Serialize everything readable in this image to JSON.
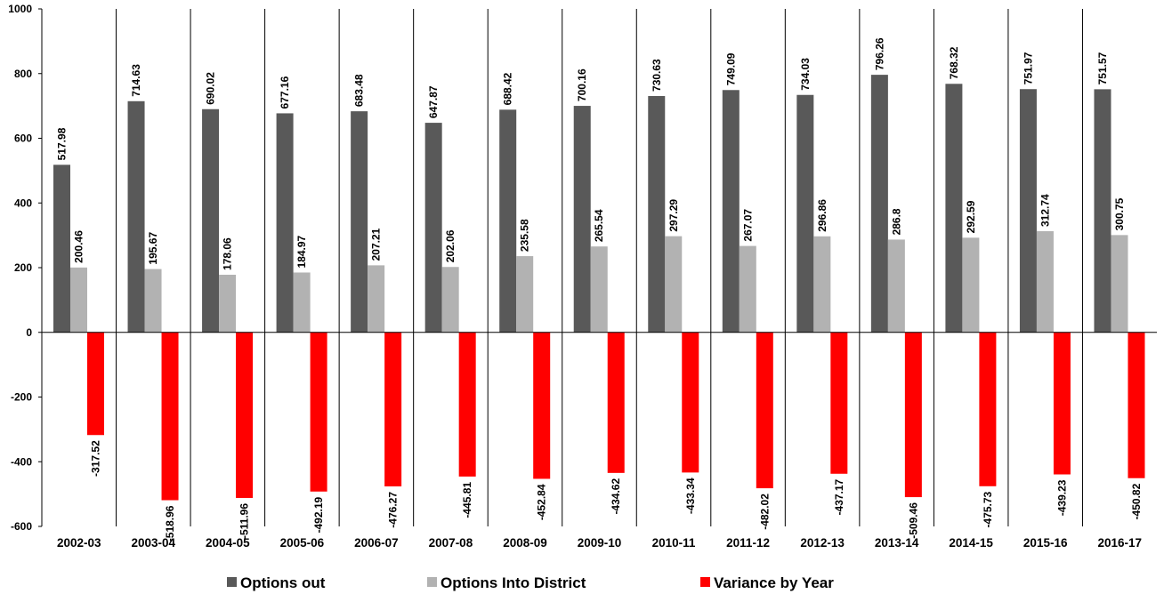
{
  "chart_data": {
    "type": "bar",
    "categories": [
      "2002-03",
      "2003-04",
      "2004-05",
      "2005-06",
      "2006-07",
      "2007-08",
      "2008-09",
      "2009-10",
      "2010-11",
      "2011-12",
      "2012-13",
      "2013-14",
      "2014-15",
      "2015-16",
      "2016-17"
    ],
    "series": [
      {
        "name": "Options out",
        "color": "#595959",
        "values": [
          517.98,
          714.63,
          690.02,
          677.16,
          683.48,
          647.87,
          688.42,
          700.16,
          730.63,
          749.09,
          734.03,
          796.26,
          768.32,
          751.97,
          751.57
        ],
        "labels": [
          "517.98",
          "714.63",
          "690.02",
          "677.16",
          "683.48",
          "647.87",
          "688.42",
          "700.16",
          "730.63",
          "749.09",
          "734.03",
          "796.26",
          "768.32",
          "751.97",
          "751.57"
        ]
      },
      {
        "name": "Options Into District",
        "color": "#b2b2b2",
        "values": [
          200.46,
          195.67,
          178.06,
          184.97,
          207.21,
          202.06,
          235.58,
          265.54,
          297.29,
          267.07,
          296.86,
          286.8,
          292.59,
          312.74,
          300.75
        ],
        "labels": [
          "200.46",
          "195.67",
          "178.06",
          "184.97",
          "207.21",
          "202.06",
          "235.58",
          "265.54",
          "297.29",
          "267.07",
          "296.86",
          "286.8",
          "292.59",
          "312.74",
          "300.75"
        ]
      },
      {
        "name": "Variance by Year",
        "color": "#ff0000",
        "values": [
          -317.52,
          -518.96,
          -511.96,
          -492.19,
          -476.27,
          -445.81,
          -452.84,
          -434.62,
          -433.34,
          -482.02,
          -437.17,
          -509.46,
          -475.73,
          -439.23,
          -450.82
        ],
        "labels": [
          "-317.52",
          "-518.96",
          "-511.96",
          "-492.19",
          "-476.27",
          "-445.81",
          "-452.84",
          "-434.62",
          "-433.34",
          "-482.02",
          "-437.17",
          "-509.46",
          "-475.73",
          "-439.23",
          "-450.82"
        ]
      }
    ],
    "ylim": [
      -600,
      1000
    ],
    "yticks": [
      "-600",
      "-400",
      "-200",
      "0",
      "200",
      "400",
      "600",
      "800",
      "1000"
    ],
    "title": "",
    "xlabel": "",
    "ylabel": "",
    "legend_position": "bottom",
    "grid": false
  }
}
